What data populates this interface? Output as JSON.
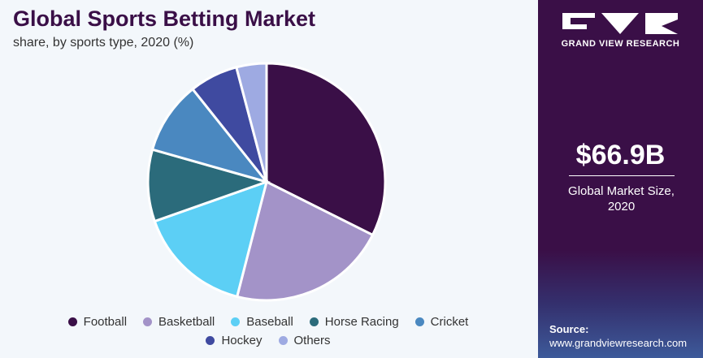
{
  "chart_data": {
    "type": "pie",
    "title": "Global Sports Betting Market",
    "subtitle": "share, by sports type, 2020 (%)",
    "categories": [
      "Football",
      "Basketball",
      "Baseball",
      "Horse Racing",
      "Cricket",
      "Hockey",
      "Others"
    ],
    "values": [
      32.4,
      21.6,
      15.6,
      9.8,
      9.9,
      6.6,
      4.1
    ],
    "colors": [
      "#3a0f47",
      "#a393c8",
      "#5ccff5",
      "#2b6b7b",
      "#4a88c0",
      "#3f4aa0",
      "#9eaae2"
    ]
  },
  "brand": "GRAND VIEW RESEARCH",
  "market_size": {
    "value": "$66.9B",
    "label": "Global Market Size, 2020"
  },
  "source": {
    "label": "Source:",
    "url": "www.grandviewresearch.com"
  }
}
